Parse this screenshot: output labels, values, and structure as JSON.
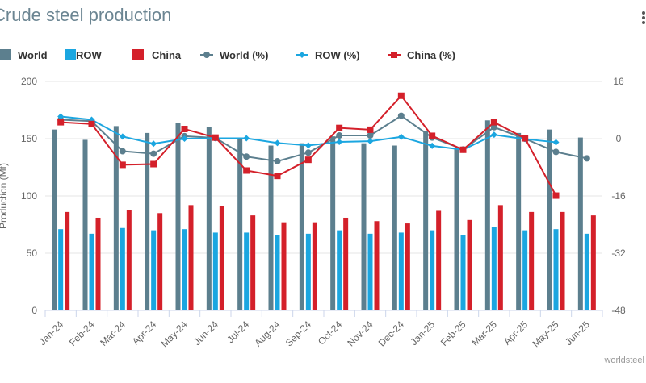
{
  "header": {
    "title": "Crude steel production",
    "menu_icon": "hamburger-menu-icon"
  },
  "credit": "worldsteel",
  "colors": {
    "world_bar": "#5c7f8e",
    "row_bar": "#1ba6e0",
    "china_bar": "#d4202a",
    "world_line": "#5c7f8e",
    "row_line": "#1ba6e0",
    "china_line": "#d4202a",
    "grid": "#e6e6e6"
  },
  "chart_data": {
    "type": "bar",
    "categories": [
      "Jan-24",
      "Feb-24",
      "Mar-24",
      "Apr-24",
      "May-24",
      "Jun-24",
      "Jul-24",
      "Aug-24",
      "Sep-24",
      "Oct-24",
      "Nov-24",
      "Dec-24",
      "Jan-25",
      "Feb-25",
      "Mar-25",
      "Apr-25",
      "May-25",
      "Jun-25"
    ],
    "ylabel": "Production (Mt)",
    "ylim": [
      0,
      200
    ],
    "yticks": [
      0,
      50,
      100,
      150,
      200
    ],
    "y2lim": [
      -48,
      16
    ],
    "y2ticks": [
      -48,
      -32,
      -16,
      0,
      16
    ],
    "legend_position": "top",
    "grid": true,
    "series": [
      {
        "name": "World",
        "kind": "bar",
        "axis": "left",
        "values": [
          158,
          149,
          161,
          155,
          164,
          160,
          151,
          144,
          146,
          152,
          146,
          144,
          157,
          141,
          166,
          155,
          158,
          151
        ]
      },
      {
        "name": "ROW",
        "kind": "bar",
        "axis": "left",
        "values": [
          71,
          67,
          72,
          70,
          71,
          68,
          68,
          66,
          67,
          70,
          67,
          68,
          70,
          66,
          73,
          70,
          71,
          67
        ]
      },
      {
        "name": "China",
        "kind": "bar",
        "axis": "left",
        "values": [
          86,
          81,
          88,
          85,
          92,
          91,
          83,
          77,
          77,
          81,
          78,
          76,
          87,
          79,
          92,
          86,
          86,
          83
        ]
      },
      {
        "name": "World (%)",
        "kind": "line",
        "axis": "right",
        "marker": "circle",
        "values": [
          5.3,
          4.9,
          -3.5,
          -4.2,
          0.7,
          0.2,
          -5.0,
          -6.3,
          -3.9,
          0.9,
          0.9,
          6.4,
          0.3,
          -3.0,
          3.2,
          0.0,
          -3.7,
          -5.5
        ]
      },
      {
        "name": "ROW (%)",
        "kind": "line",
        "axis": "right",
        "marker": "diamond",
        "values": [
          6.2,
          5.3,
          0.6,
          -1.4,
          0.0,
          0.1,
          0.1,
          -1.2,
          -1.9,
          -0.9,
          -0.7,
          0.5,
          -2.0,
          -3.1,
          1.1,
          -0.1,
          -1.0,
          null
        ]
      },
      {
        "name": "China (%)",
        "kind": "line",
        "axis": "right",
        "marker": "square",
        "values": [
          4.6,
          4.1,
          -7.3,
          -7.1,
          2.7,
          0.3,
          -8.9,
          -10.4,
          -5.9,
          3.0,
          2.5,
          12.0,
          0.8,
          -3.1,
          4.6,
          0.1,
          -15.9,
          null
        ]
      }
    ]
  }
}
